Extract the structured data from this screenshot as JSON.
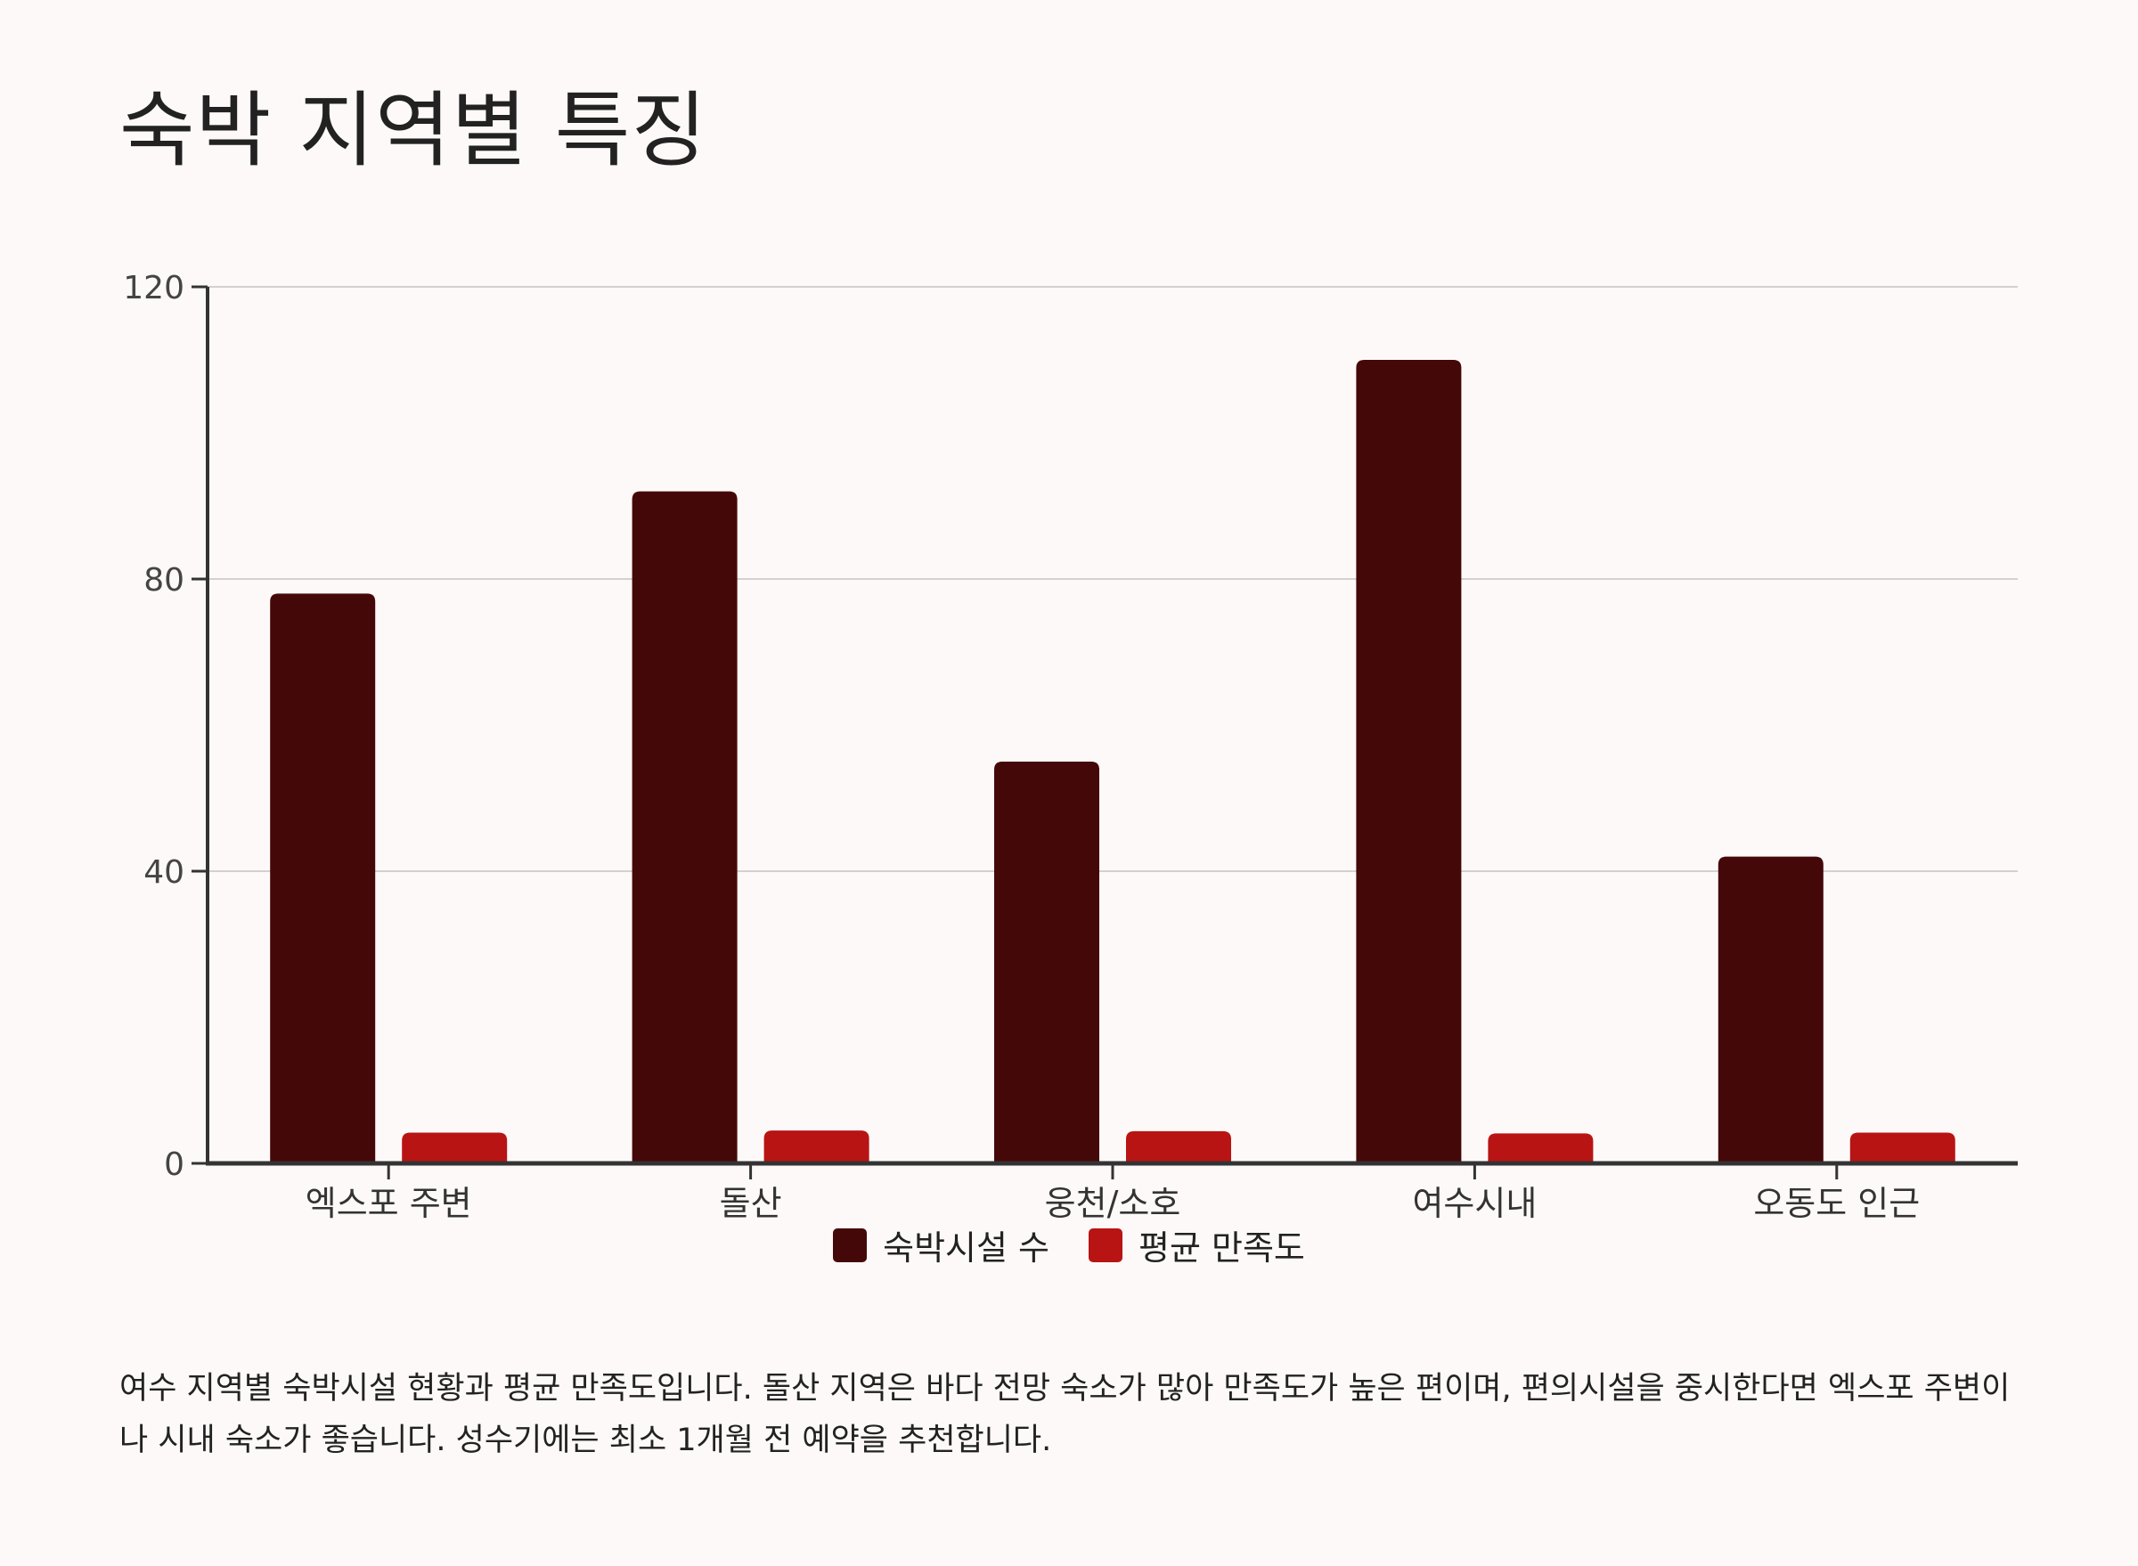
{
  "header": {
    "title": "숙박 지역별 특징"
  },
  "legend": {
    "items": [
      {
        "label": "숙박시설 수",
        "color": "#450808"
      },
      {
        "label": "평균 만족도",
        "color": "#b81414"
      }
    ]
  },
  "description": "여수 지역별 숙박시설 현황과 평균 만족도입니다. 돌산 지역은 바다 전망 숙소가 많아 만족도가 높은 편이며, 편의시설을 중시한다면 엑스포 주변이나 시내 숙소가 좋습니다. 성수기에는 최소 1개월 전 예약을 추천합니다.",
  "chart_data": {
    "type": "bar",
    "title": "숙박 지역별 특징",
    "xlabel": "",
    "ylabel": "",
    "categories": [
      "엑스포 주변",
      "돌산",
      "웅천/소호",
      "여수시내",
      "오동도 인근"
    ],
    "series": [
      {
        "name": "숙박시설 수",
        "color": "#450808",
        "values": [
          78,
          92,
          55,
          110,
          42
        ]
      },
      {
        "name": "평균 만족도",
        "color": "#b81414",
        "values": [
          4.2,
          4.5,
          4.4,
          4.1,
          4.2
        ]
      }
    ],
    "ylim": [
      0,
      120
    ],
    "yticks": [
      0,
      40,
      80,
      120
    ],
    "grid": true,
    "legend_position": "bottom-center"
  }
}
